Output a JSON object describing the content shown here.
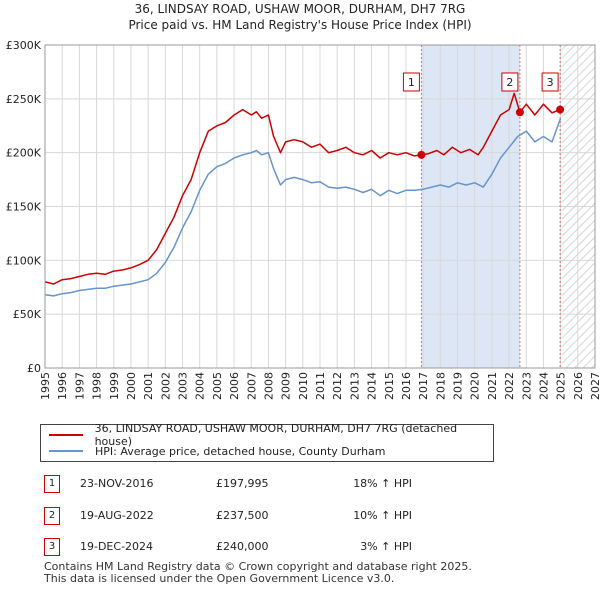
{
  "title_line1": "36, LINDSAY ROAD, USHAW MOOR, DURHAM, DH7 7RG",
  "title_line2": "Price paid vs. HM Land Registry's House Price Index (HPI)",
  "colors": {
    "property": "#cc0000",
    "hpi": "#6495cd",
    "shade": "#dde6f4",
    "grid": "#d8d8d8",
    "marker_line": "#e07070"
  },
  "chart_data": {
    "type": "line",
    "xlim": [
      1995,
      2027
    ],
    "ylim": [
      0,
      300000
    ],
    "y_ticks": [
      0,
      50000,
      100000,
      150000,
      200000,
      250000,
      300000
    ],
    "y_tick_labels": [
      "£0",
      "£50K",
      "£100K",
      "£150K",
      "£200K",
      "£250K",
      "£300K"
    ],
    "x_ticks": [
      "1995",
      "1996",
      "1997",
      "1998",
      "1999",
      "2000",
      "2001",
      "2002",
      "2003",
      "2004",
      "2005",
      "2006",
      "2007",
      "2008",
      "2009",
      "2010",
      "2011",
      "2012",
      "2013",
      "2014",
      "2015",
      "2016",
      "2017",
      "2018",
      "2019",
      "2020",
      "2021",
      "2022",
      "2023",
      "2024",
      "2025",
      "2026",
      "2027"
    ],
    "forecast_start": 2025.1,
    "shaded_range": [
      2016.9,
      2022.63
    ],
    "series": [
      {
        "name": "36, LINDSAY ROAD, USHAW MOOR, DURHAM, DH7 7RG (detached house)",
        "color": "#cc0000",
        "x": [
          1995,
          1995.5,
          1996,
          1996.5,
          1997,
          1997.5,
          1998,
          1998.5,
          1999,
          1999.5,
          2000,
          2000.5,
          2001,
          2001.5,
          2002,
          2002.5,
          2003,
          2003.5,
          2004,
          2004.5,
          2005,
          2005.5,
          2006,
          2006.5,
          2007,
          2007.3,
          2007.6,
          2008,
          2008.3,
          2008.7,
          2009,
          2009.5,
          2010,
          2010.5,
          2011,
          2011.5,
          2012,
          2012.5,
          2013,
          2013.5,
          2014,
          2014.5,
          2015,
          2015.5,
          2016,
          2016.5,
          2016.9,
          2017.3,
          2017.8,
          2018.2,
          2018.7,
          2019.2,
          2019.7,
          2020.2,
          2020.5,
          2021,
          2021.5,
          2022,
          2022.3,
          2022.63,
          2023,
          2023.5,
          2024,
          2024.5,
          2024.97
        ],
        "y": [
          80000,
          78000,
          82000,
          83000,
          85000,
          87000,
          88000,
          87000,
          90000,
          91000,
          93000,
          96000,
          100000,
          110000,
          125000,
          140000,
          160000,
          175000,
          200000,
          220000,
          225000,
          228000,
          235000,
          240000,
          235000,
          238000,
          232000,
          235000,
          215000,
          200000,
          210000,
          212000,
          210000,
          205000,
          208000,
          200000,
          202000,
          205000,
          200000,
          198000,
          202000,
          195000,
          200000,
          198000,
          200000,
          197000,
          197995,
          199000,
          202000,
          198000,
          205000,
          200000,
          203000,
          198000,
          205000,
          220000,
          235000,
          240000,
          255000,
          237500,
          245000,
          235000,
          245000,
          237000,
          240000
        ]
      },
      {
        "name": "HPI: Average price, detached house, County Durham",
        "color": "#6495cd",
        "x": [
          1995,
          1995.5,
          1996,
          1996.5,
          1997,
          1997.5,
          1998,
          1998.5,
          1999,
          1999.5,
          2000,
          2000.5,
          2001,
          2001.5,
          2002,
          2002.5,
          2003,
          2003.5,
          2004,
          2004.5,
          2005,
          2005.5,
          2006,
          2006.5,
          2007,
          2007.3,
          2007.6,
          2008,
          2008.3,
          2008.7,
          2009,
          2009.5,
          2010,
          2010.5,
          2011,
          2011.5,
          2012,
          2012.5,
          2013,
          2013.5,
          2014,
          2014.5,
          2015,
          2015.5,
          2016,
          2016.5,
          2017,
          2017.5,
          2018,
          2018.5,
          2019,
          2019.5,
          2020,
          2020.5,
          2021,
          2021.5,
          2022,
          2022.5,
          2023,
          2023.5,
          2024,
          2024.5,
          2025
        ],
        "y": [
          68000,
          67000,
          69000,
          70000,
          72000,
          73000,
          74000,
          74000,
          76000,
          77000,
          78000,
          80000,
          82000,
          88000,
          98000,
          112000,
          130000,
          145000,
          165000,
          180000,
          187000,
          190000,
          195000,
          198000,
          200000,
          202000,
          198000,
          200000,
          185000,
          170000,
          175000,
          177000,
          175000,
          172000,
          173000,
          168000,
          167000,
          168000,
          166000,
          163000,
          166000,
          160000,
          165000,
          162000,
          165000,
          165000,
          166000,
          168000,
          170000,
          168000,
          172000,
          170000,
          172000,
          168000,
          180000,
          195000,
          205000,
          215000,
          220000,
          210000,
          215000,
          210000,
          232000
        ]
      }
    ],
    "sale_points": [
      {
        "label": "1",
        "x": 2016.9,
        "y": 197995
      },
      {
        "label": "2",
        "x": 2022.63,
        "y": 237500
      },
      {
        "label": "3",
        "x": 2024.97,
        "y": 240000
      }
    ]
  },
  "legend": {
    "property_label": "36, LINDSAY ROAD, USHAW MOOR, DURHAM, DH7 7RG (detached house)",
    "hpi_label": "HPI: Average price, detached house, County Durham"
  },
  "sales": [
    {
      "num": "1",
      "date": "23-NOV-2016",
      "price": "£197,995",
      "hpi": "18% ↑ HPI"
    },
    {
      "num": "2",
      "date": "19-AUG-2022",
      "price": "£237,500",
      "hpi": "10% ↑ HPI"
    },
    {
      "num": "3",
      "date": "19-DEC-2024",
      "price": "£240,000",
      "hpi": "3% ↑ HPI"
    }
  ],
  "footer_line1": "Contains HM Land Registry data © Crown copyright and database right 2025.",
  "footer_line2": "This data is licensed under the Open Government Licence v3.0."
}
